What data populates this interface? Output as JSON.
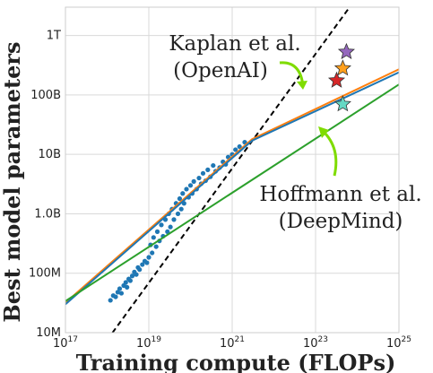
{
  "chart_data": {
    "type": "scatter",
    "title": "",
    "xlabel": "Training compute (FLOPs)",
    "ylabel": "Best model parameters",
    "xscale": "log",
    "yscale": "log",
    "xlim": [
      1e+17,
      1e+25
    ],
    "ylim": [
      10000000.0,
      3000000000000.0
    ],
    "grid": true,
    "x_ticks": [
      {
        "value": 1e+17,
        "base": "10",
        "exp": "17"
      },
      {
        "value": 1e+19,
        "base": "10",
        "exp": "19"
      },
      {
        "value": 1e+21,
        "base": "10",
        "exp": "21"
      },
      {
        "value": 1e+23,
        "base": "10",
        "exp": "23"
      },
      {
        "value": 1e+25,
        "base": "10",
        "exp": "25"
      }
    ],
    "y_ticks": [
      {
        "value": 10000000.0,
        "label": "10M"
      },
      {
        "value": 100000000.0,
        "label": "100M"
      },
      {
        "value": 1000000000.0,
        "label": "1.0B"
      },
      {
        "value": 10000000000.0,
        "label": "10B"
      },
      {
        "value": 100000000000.0,
        "label": "100B"
      },
      {
        "value": 1000000000000.0,
        "label": "1T"
      }
    ],
    "series": [
      {
        "kind": "scatter",
        "color": "#1f77b4",
        "points": [
          [
            1.2e+18,
            35000000.0
          ],
          [
            1.4e+18,
            42000000.0
          ],
          [
            1.6e+18,
            40000000.0
          ],
          [
            1.8e+18,
            48000000.0
          ],
          [
            2e+18,
            55000000.0
          ],
          [
            2.2e+18,
            46000000.0
          ],
          [
            2.5e+18,
            62000000.0
          ],
          [
            2.8e+18,
            70000000.0
          ],
          [
            3e+18,
            58000000.0
          ],
          [
            3.3e+18,
            80000000.0
          ],
          [
            3.6e+18,
            75000000.0
          ],
          [
            4e+18,
            90000000.0
          ],
          [
            4.5e+18,
            105000000.0
          ],
          [
            5e+18,
            95000000.0
          ],
          [
            5.5e+18,
            125000000.0
          ],
          [
            6e+18,
            115000000.0
          ],
          [
            7e+18,
            140000000.0
          ],
          [
            8e+18,
            160000000.0
          ],
          [
            9e+18,
            150000000.0
          ],
          [
            1e+19,
            185000000.0
          ],
          [
            1.1e+19,
            300000000.0
          ],
          [
            1.2e+19,
            220000000.0
          ],
          [
            1.3e+19,
            400000000.0
          ],
          [
            1.5e+19,
            280000000.0
          ],
          [
            1.6e+19,
            500000000.0
          ],
          [
            1.8e+19,
            350000000.0
          ],
          [
            2e+19,
            650000000.0
          ],
          [
            2.2e+19,
            420000000.0
          ],
          [
            2.5e+19,
            800000000.0
          ],
          [
            2.8e+19,
            500000000.0
          ],
          [
            3e+19,
            1000000000.0
          ],
          [
            3.3e+19,
            600000000.0
          ],
          [
            3.6e+19,
            1200000000.0
          ],
          [
            4e+19,
            800000000.0
          ],
          [
            4.5e+19,
            1500000000.0
          ],
          [
            5e+19,
            1000000000.0
          ],
          [
            5.5e+19,
            1800000000.0
          ],
          [
            6e+19,
            1200000000.0
          ],
          [
            6.5e+19,
            2200000000.0
          ],
          [
            7e+19,
            1500000000.0
          ],
          [
            8e+19,
            2600000000.0
          ],
          [
            9e+19,
            1900000000.0
          ],
          [
            1e+20,
            3000000000.0
          ],
          [
            1.1e+20,
            2200000000.0
          ],
          [
            1.2e+20,
            3500000000.0
          ],
          [
            1.4e+20,
            2600000000.0
          ],
          [
            1.6e+20,
            4000000000.0
          ],
          [
            1.8e+20,
            3200000000.0
          ],
          [
            2e+20,
            4800000000.0
          ],
          [
            2.3e+20,
            3600000000.0
          ],
          [
            2.6e+20,
            5500000000.0
          ],
          [
            3e+20,
            4200000000.0
          ],
          [
            3.5e+20,
            6500000000.0
          ],
          [
            4e+20,
            5200000000.0
          ],
          [
            5e+20,
            6000000000.0
          ],
          [
            6e+20,
            7500000000.0
          ],
          [
            7e+20,
            6800000000.0
          ],
          [
            8e+20,
            9000000000.0
          ],
          [
            1e+21,
            10000000000.0
          ],
          [
            1.2e+21,
            12000000000.0
          ],
          [
            1.5e+21,
            13500000000.0
          ],
          [
            2e+21,
            16000000000.0
          ]
        ]
      },
      {
        "kind": "line",
        "color": "#000000",
        "dashed": true,
        "points": [
          [
            1e+18,
            7500000.0
          ],
          [
            1e+24,
            4500000000000.0
          ]
        ]
      },
      {
        "kind": "line",
        "color": "#ff7f0e",
        "points": [
          [
            1e+17,
            32000000.0
          ],
          [
            3e+21,
            18000000000.0
          ],
          [
            1e+25,
            270000000000.0
          ]
        ]
      },
      {
        "kind": "line",
        "color": "#1f77b4",
        "points": [
          [
            1e+17,
            30000000.0
          ],
          [
            3e+21,
            17000000000.0
          ],
          [
            1e+25,
            240000000000.0
          ]
        ]
      },
      {
        "kind": "line",
        "color": "#2ca02c",
        "points": [
          [
            1e+17,
            34000000.0
          ],
          [
            1e+25,
            150000000000.0
          ]
        ]
      },
      {
        "kind": "stars",
        "points": [
          {
            "x": 5.5e+23,
            "y": 530000000000.0,
            "color": "#9467bd"
          },
          {
            "x": 4.5e+23,
            "y": 280000000000.0,
            "color": "#ff9f1c"
          },
          {
            "x": 3.2e+23,
            "y": 175000000000.0,
            "color": "#d62728"
          },
          {
            "x": 4.5e+23,
            "y": 70000000000.0,
            "color": "#66d9c4"
          }
        ]
      }
    ],
    "annotations": [
      {
        "text_lines": [
          "Kaplan et al.",
          "(OpenAI)"
        ],
        "arrow_color": "#7fdc00"
      },
      {
        "text_lines": [
          "Hoffmann et al.",
          "(DeepMind)"
        ],
        "arrow_color": "#7fdc00"
      }
    ]
  }
}
